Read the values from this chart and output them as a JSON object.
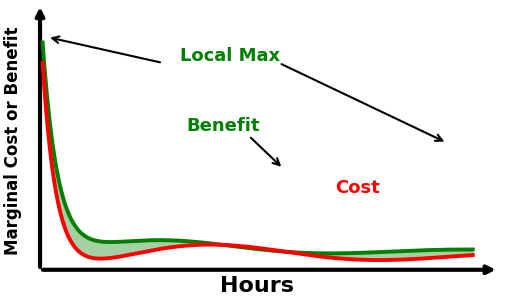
{
  "xlabel": "Hours",
  "ylabel": "Marginal Cost or Benefit",
  "benefit_color": "#008000",
  "cost_color": "#ff0000",
  "fill_benefit_color": "#5aab5a",
  "fill_cost_color": "#ff8888",
  "background_color": "#ffffff",
  "xlabel_fontsize": 16,
  "ylabel_fontsize": 12,
  "label_benefit": "Benefit",
  "label_cost": "Cost",
  "label_localmax": "Local Max"
}
